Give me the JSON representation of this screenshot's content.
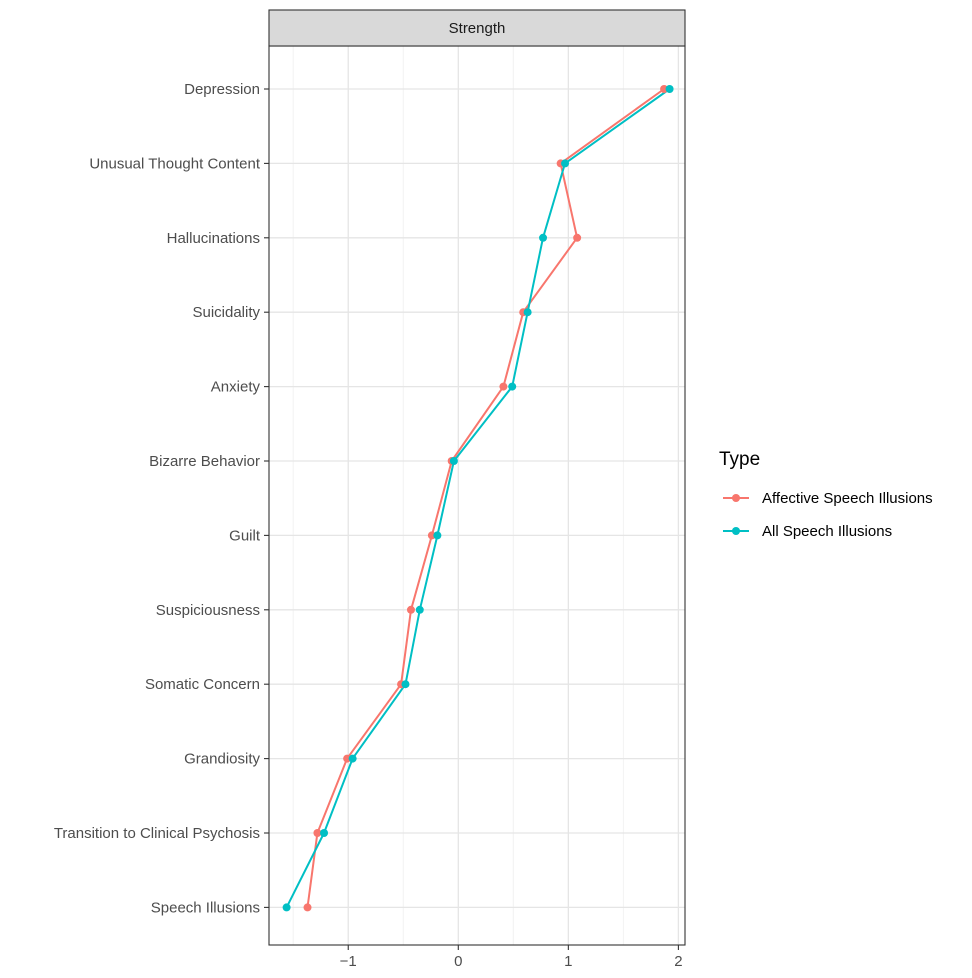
{
  "chart_data": {
    "type": "line",
    "facet_label": "Strength",
    "categories": [
      "Depression",
      "Unusual Thought Content",
      "Hallucinations",
      "Suicidality",
      "Anxiety",
      "Bizarre Behavior",
      "Guilt",
      "Suspiciousness",
      "Somatic Concern",
      "Grandiosity",
      "Transition to Clinical Psychosis",
      "Speech Illusions"
    ],
    "series": [
      {
        "name": "Affective Speech Illusions",
        "color": "#F8766D",
        "values": [
          1.87,
          0.93,
          1.08,
          0.59,
          0.41,
          -0.06,
          -0.24,
          -0.43,
          -0.52,
          -1.01,
          -1.28,
          -1.37
        ]
      },
      {
        "name": "All Speech Illusions",
        "color": "#00BFC4",
        "values": [
          1.92,
          0.97,
          0.77,
          0.63,
          0.49,
          -0.04,
          -0.19,
          -0.35,
          -0.48,
          -0.96,
          -1.22,
          -1.56
        ]
      }
    ],
    "x_ticks": [
      -1,
      0,
      1,
      2
    ],
    "x_tick_labels": [
      "−1",
      "0",
      "1",
      "2"
    ],
    "xlim": [
      -1.72,
      2.06
    ],
    "legend": {
      "title": "Type",
      "position": "right"
    },
    "grid": true
  }
}
